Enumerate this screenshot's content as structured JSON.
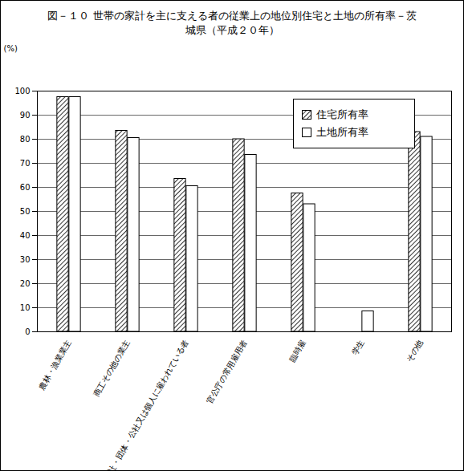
{
  "chart_data": {
    "type": "bar",
    "title": "図－１０ 世帯の家計を主に支える者の従業上の地位別住宅と土地の所有率－茨城県（平成２０年）",
    "y_label": "(%)",
    "categories": [
      "農林・漁業業主",
      "商工その他の業主",
      "会社・団体・公社又は個人に雇われている者",
      "官公庁の常用雇用者",
      "臨時雇",
      "学生",
      "その他"
    ],
    "series": [
      {
        "name": "住宅所有率",
        "color": "#000000",
        "values": [
          97.5,
          83.5,
          63.5,
          80,
          57.5,
          0,
          83
        ]
      },
      {
        "name": "土地所有率",
        "color": "#ffffff",
        "values": [
          97.5,
          80.5,
          60.5,
          73.5,
          53,
          8.5,
          81
        ]
      }
    ],
    "ylim": [
      0,
      100
    ],
    "yticks": [
      0,
      10,
      20,
      30,
      40,
      50,
      60,
      70,
      80,
      90,
      100
    ],
    "grid": true,
    "legend": "top-right"
  }
}
